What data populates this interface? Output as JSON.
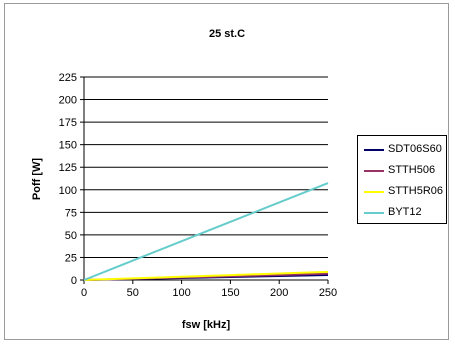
{
  "chart_data": {
    "type": "line",
    "title": "25 st.C",
    "xlabel": "fsw [kHz]",
    "ylabel": "Poff [W]",
    "xlim": [
      0,
      250
    ],
    "ylim": [
      0,
      225
    ],
    "x_ticks": [
      "0",
      "50",
      "100",
      "150",
      "200",
      "250"
    ],
    "y_ticks": [
      "0",
      "25",
      "50",
      "75",
      "100",
      "125",
      "150",
      "175",
      "200",
      "225"
    ],
    "grid": "horizontal",
    "legend_position": "right",
    "x": [
      0,
      50,
      100,
      150,
      200,
      250
    ],
    "series": [
      {
        "name": "SDT06S60",
        "color": "#000066",
        "values": [
          0,
          1.1,
          2.2,
          3.3,
          4.4,
          5.5
        ]
      },
      {
        "name": "STTH506",
        "color": "#993366",
        "values": [
          0,
          1.4,
          2.8,
          4.2,
          5.6,
          7.0
        ]
      },
      {
        "name": "STTH5R06",
        "color": "#ffff00",
        "values": [
          0,
          1.8,
          3.6,
          5.4,
          7.2,
          9.0
        ]
      },
      {
        "name": "BYT12",
        "color": "#66cccc",
        "values": [
          0,
          21.5,
          43,
          64.5,
          86,
          107.5
        ]
      }
    ]
  }
}
